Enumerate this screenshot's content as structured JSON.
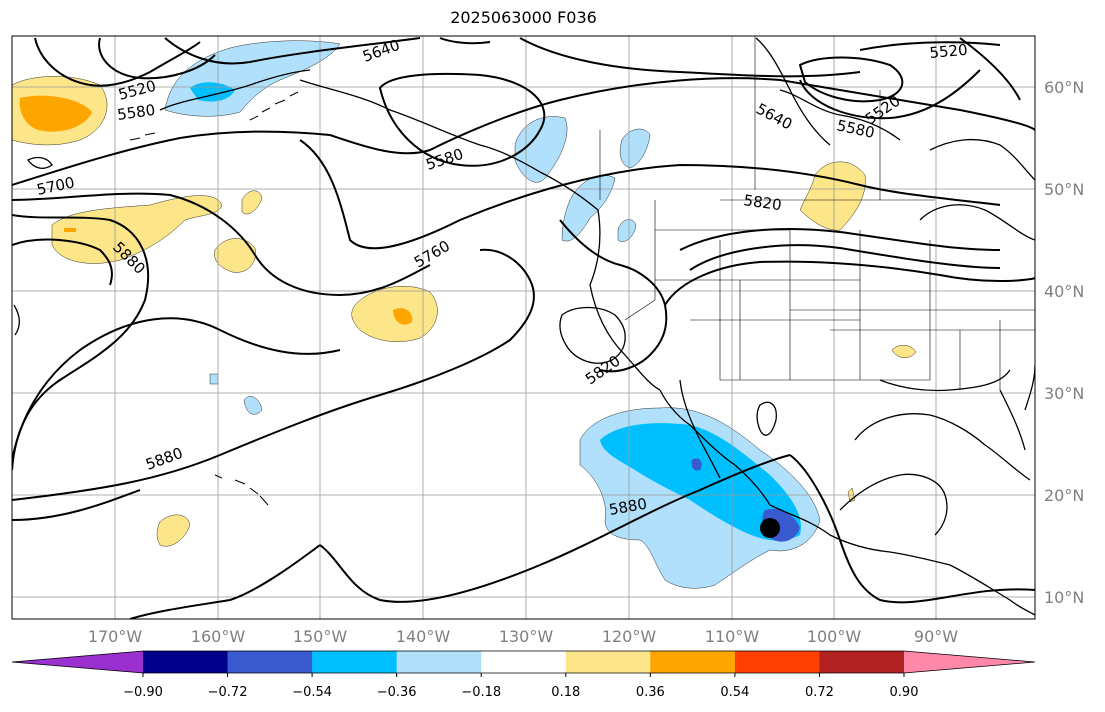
{
  "title": "2025063000 F036",
  "lat_labels": [
    "60°N",
    "50°N",
    "40°N",
    "30°N",
    "20°N",
    "10°N"
  ],
  "lon_labels": [
    "170°W",
    "160°W",
    "150°W",
    "140°W",
    "130°W",
    "120°W",
    "110°W",
    "100°W",
    "90°W"
  ],
  "contour_labels": [
    "5640",
    "5520",
    "5580",
    "5700",
    "5880",
    "5580",
    "5760",
    "5820",
    "5880",
    "5880",
    "5640",
    "5580",
    "5520",
    "5520",
    "5820"
  ],
  "colorbar": {
    "colors": [
      "#9b30d0",
      "#00008b",
      "#3a5bcf",
      "#00bfff",
      "#b0e0fb",
      "#ffffff",
      "#fde68a",
      "#ffa500",
      "#ff4000",
      "#b22222",
      "#ff88aa"
    ],
    "tick_labels": [
      "−0.90",
      "−0.72",
      "−0.54",
      "−0.36",
      "−0.18",
      "0.18",
      "0.36",
      "0.54",
      "0.72",
      "0.90"
    ]
  },
  "colors": {
    "contour": "#000000",
    "grid": "#999999",
    "coast": "#000000"
  }
}
